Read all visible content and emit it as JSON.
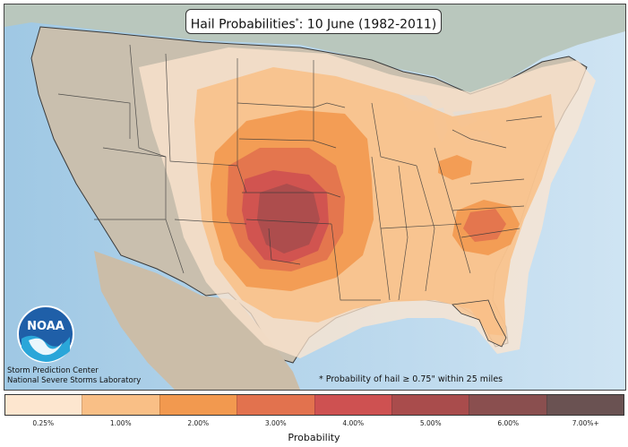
{
  "title": {
    "main": "Hail Probabilities",
    "marker": "*",
    "date": ": 10 June (1982-2011)"
  },
  "footnote": "* Probability of hail ≥ 0.75\" within 25 miles",
  "credits": [
    "Storm Prediction Center",
    "National Severe Storms Laboratory"
  ],
  "logo_text": "NOAA",
  "legend": {
    "title": "Probability",
    "items": [
      {
        "label": "0.25%",
        "color": "#fde6cf"
      },
      {
        "label": "1.00%",
        "color": "#f9bf86"
      },
      {
        "label": "2.00%",
        "color": "#f2994f"
      },
      {
        "label": "3.00%",
        "color": "#e2724e"
      },
      {
        "label": "4.00%",
        "color": "#ce5151"
      },
      {
        "label": "5.00%",
        "color": "#a94c4c"
      },
      {
        "label": "6.00%",
        "color": "#8a4f4f"
      },
      {
        "label": "7.00%+",
        "color": "#6a5252"
      }
    ]
  }
}
